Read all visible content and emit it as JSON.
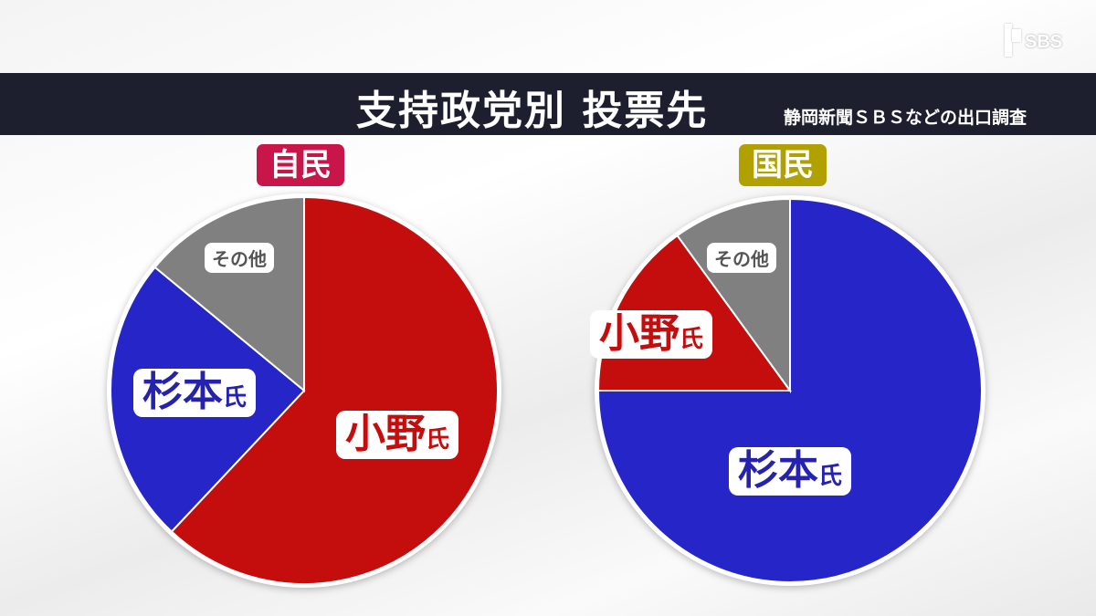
{
  "header": {
    "title": "支持政党別 投票先",
    "source": "静岡新聞ＳＢＳなどの出口調査",
    "logo_text": "SBS"
  },
  "colors": {
    "ono": "#c40d0d",
    "sugimoto": "#2626c8",
    "other": "#808080",
    "ldp_badge": "#c8154a",
    "dpp_badge": "#b0a000",
    "banner": "#1e1f2e"
  },
  "chart_data": [
    {
      "type": "pie",
      "title": "自民",
      "start": "top",
      "direction": "clockwise",
      "slices": [
        {
          "label": "小野氏",
          "value": 62,
          "color": "#c40d0d"
        },
        {
          "label": "杉本氏",
          "value": 24,
          "color": "#2626c8"
        },
        {
          "label": "その他",
          "value": 14,
          "color": "#808080"
        }
      ]
    },
    {
      "type": "pie",
      "title": "国民",
      "start": "top",
      "direction": "clockwise",
      "slices": [
        {
          "label": "杉本氏",
          "value": 75,
          "color": "#2626c8"
        },
        {
          "label": "小野氏",
          "value": 15,
          "color": "#c40d0d"
        },
        {
          "label": "その他",
          "value": 10,
          "color": "#808080"
        }
      ]
    }
  ],
  "labels": {
    "ldp": {
      "ono_main": "小野",
      "ono_suffix": "氏",
      "sugimoto_main": "杉本",
      "sugimoto_suffix": "氏",
      "other": "その他"
    },
    "dpp": {
      "ono_main": "小野",
      "ono_suffix": "氏",
      "sugimoto_main": "杉本",
      "sugimoto_suffix": "氏",
      "other": "その他"
    }
  }
}
